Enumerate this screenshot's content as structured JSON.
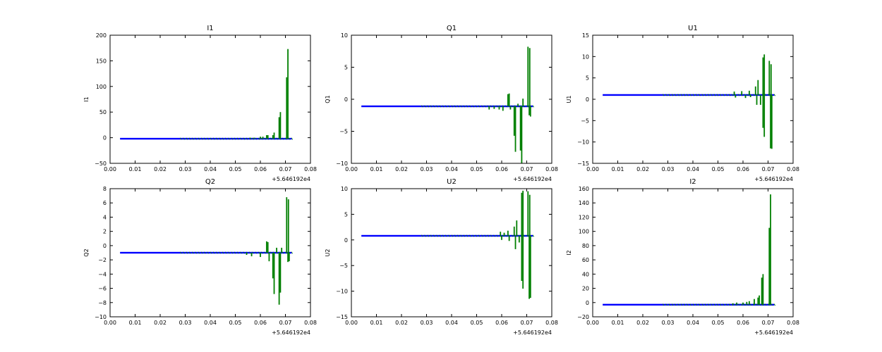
{
  "chart_data": [
    {
      "type": "line",
      "title": "I1",
      "ylabel": "I1",
      "xlim": [
        0.0,
        0.08
      ],
      "ylim": [
        -50,
        200
      ],
      "x_ticks": [
        "0.00",
        "0.01",
        "0.02",
        "0.03",
        "0.04",
        "0.05",
        "0.06",
        "0.07",
        "0.08"
      ],
      "y_ticks": [
        "200",
        "150",
        "100",
        "50",
        "0",
        "−50"
      ],
      "y_tick_values": [
        200,
        150,
        100,
        50,
        0,
        -50
      ],
      "x_offset_label": "+5.646192e4",
      "baseline": -2,
      "x_start": 0.004,
      "x_end": 0.0725,
      "series": [
        {
          "color": "#0000ff",
          "type": "line",
          "values": [
            [
              0.004,
              -2
            ],
            [
              0.0725,
              -2
            ]
          ]
        },
        {
          "color": "#007f00",
          "type": "spikes",
          "values": [
            [
              0.0535,
              -1
            ],
            [
              0.056,
              0
            ],
            [
              0.0575,
              0
            ],
            [
              0.06,
              2
            ],
            [
              0.061,
              2
            ],
            [
              0.0625,
              5
            ],
            [
              0.063,
              5
            ],
            [
              0.065,
              5
            ],
            [
              0.0655,
              10
            ],
            [
              0.0675,
              40
            ],
            [
              0.068,
              50
            ],
            [
              0.0705,
              118
            ],
            [
              0.071,
              173
            ]
          ]
        }
      ]
    },
    {
      "type": "line",
      "title": "Q1",
      "ylabel": "Q1",
      "xlim": [
        0.0,
        0.08
      ],
      "ylim": [
        -10,
        10
      ],
      "x_ticks": [
        "0.00",
        "0.01",
        "0.02",
        "0.03",
        "0.04",
        "0.05",
        "0.06",
        "0.07",
        "0.08"
      ],
      "y_ticks": [
        "10",
        "5",
        "0",
        "−5",
        "−10"
      ],
      "y_tick_values": [
        10,
        5,
        0,
        -5,
        -10
      ],
      "x_offset_label": "+5.646192e4",
      "baseline": -1.1,
      "x_start": 0.004,
      "x_end": 0.0725,
      "series": [
        {
          "color": "#0000ff",
          "type": "line",
          "values": [
            [
              0.004,
              -1.1
            ],
            [
              0.0725,
              -1.1
            ]
          ]
        },
        {
          "color": "#007f00",
          "type": "spikes",
          "values": [
            [
              0.055,
              -1.6
            ],
            [
              0.057,
              -1.5
            ],
            [
              0.059,
              -1.6
            ],
            [
              0.0605,
              -1.8
            ],
            [
              0.0625,
              0.8
            ],
            [
              0.063,
              0.9
            ],
            [
              0.0635,
              -1.6
            ],
            [
              0.065,
              -5.7
            ],
            [
              0.0655,
              -8.2
            ],
            [
              0.0665,
              -0.7
            ],
            [
              0.0675,
              -8.0
            ],
            [
              0.068,
              -10
            ],
            [
              0.0685,
              0.1
            ],
            [
              0.0705,
              8.2
            ],
            [
              0.0712,
              8.0
            ],
            [
              0.071,
              -2.5
            ],
            [
              0.0715,
              -2.7
            ]
          ]
        }
      ]
    },
    {
      "type": "line",
      "title": "U1",
      "ylabel": "U1",
      "xlim": [
        0.0,
        0.08
      ],
      "ylim": [
        -15,
        15
      ],
      "x_ticks": [
        "0.00",
        "0.01",
        "0.02",
        "0.03",
        "0.04",
        "0.05",
        "0.06",
        "0.07",
        "0.08"
      ],
      "y_ticks": [
        "15",
        "10",
        "5",
        "0",
        "−5",
        "−10",
        "−15"
      ],
      "y_tick_values": [
        15,
        10,
        5,
        0,
        -5,
        -10,
        -15
      ],
      "x_offset_label": "+5.646192e4",
      "baseline": 1,
      "x_start": 0.004,
      "x_end": 0.0725,
      "series": [
        {
          "color": "#0000ff",
          "type": "line",
          "values": [
            [
              0.004,
              1
            ],
            [
              0.0725,
              1
            ]
          ]
        },
        {
          "color": "#007f00",
          "type": "spikes",
          "values": [
            [
              0.0565,
              1.8
            ],
            [
              0.057,
              0.4
            ],
            [
              0.0595,
              1.9
            ],
            [
              0.061,
              0.3
            ],
            [
              0.0625,
              2.0
            ],
            [
              0.063,
              0.5
            ],
            [
              0.065,
              3.0
            ],
            [
              0.0655,
              -1.3
            ],
            [
              0.066,
              4.5
            ],
            [
              0.067,
              -1.3
            ],
            [
              0.068,
              9.8
            ],
            [
              0.0685,
              10.5
            ],
            [
              0.068,
              -6.7
            ],
            [
              0.0685,
              -8.8
            ],
            [
              0.0705,
              9.0
            ],
            [
              0.0712,
              8.2
            ],
            [
              0.071,
              -11.5
            ],
            [
              0.0715,
              -11.6
            ]
          ]
        }
      ]
    },
    {
      "type": "line",
      "title": "Q2",
      "ylabel": "Q2",
      "xlim": [
        0.0,
        0.08
      ],
      "ylim": [
        -10,
        8
      ],
      "x_ticks": [
        "0.00",
        "0.01",
        "0.02",
        "0.03",
        "0.04",
        "0.05",
        "0.06",
        "0.07",
        "0.08"
      ],
      "y_ticks": [
        "8",
        "6",
        "4",
        "2",
        "0",
        "−2",
        "−4",
        "−6",
        "−8",
        "−10"
      ],
      "y_tick_values": [
        8,
        6,
        4,
        2,
        0,
        -2,
        -4,
        -6,
        -8,
        -10
      ],
      "x_offset_label": "+5.646192e4",
      "baseline": -1,
      "x_start": 0.004,
      "x_end": 0.0725,
      "series": [
        {
          "color": "#0000ff",
          "type": "line",
          "values": [
            [
              0.004,
              -1
            ],
            [
              0.0725,
              -1
            ]
          ]
        },
        {
          "color": "#007f00",
          "type": "spikes",
          "values": [
            [
              0.0545,
              -1.3
            ],
            [
              0.0565,
              -1.5
            ],
            [
              0.06,
              -1.6
            ],
            [
              0.0625,
              0.6
            ],
            [
              0.063,
              0.5
            ],
            [
              0.0635,
              -2.2
            ],
            [
              0.065,
              -4.6
            ],
            [
              0.0655,
              -6.8
            ],
            [
              0.0665,
              -0.3
            ],
            [
              0.0675,
              -8.3
            ],
            [
              0.068,
              -6.6
            ],
            [
              0.0685,
              -0.3
            ],
            [
              0.0705,
              6.8
            ],
            [
              0.0712,
              6.5
            ],
            [
              0.071,
              -2.3
            ],
            [
              0.0715,
              -2.2
            ]
          ]
        }
      ]
    },
    {
      "type": "line",
      "title": "U2",
      "ylabel": "U2",
      "xlim": [
        0.0,
        0.08
      ],
      "ylim": [
        -15,
        10
      ],
      "x_ticks": [
        "0.00",
        "0.01",
        "0.02",
        "0.03",
        "0.04",
        "0.05",
        "0.06",
        "0.07",
        "0.08"
      ],
      "y_ticks": [
        "10",
        "5",
        "0",
        "−5",
        "−10",
        "−15"
      ],
      "y_tick_values": [
        10,
        5,
        0,
        -5,
        -10,
        -15
      ],
      "x_offset_label": "+5.646192e4",
      "baseline": 0.8,
      "x_start": 0.004,
      "x_end": 0.0725,
      "series": [
        {
          "color": "#0000ff",
          "type": "line",
          "values": [
            [
              0.004,
              0.8
            ],
            [
              0.0725,
              0.8
            ]
          ]
        },
        {
          "color": "#007f00",
          "type": "spikes",
          "values": [
            [
              0.0595,
              1.6
            ],
            [
              0.06,
              0.0
            ],
            [
              0.061,
              1.4
            ],
            [
              0.0625,
              1.8
            ],
            [
              0.063,
              -0.2
            ],
            [
              0.065,
              2.6
            ],
            [
              0.0655,
              -1.8
            ],
            [
              0.066,
              3.8
            ],
            [
              0.067,
              -0.5
            ],
            [
              0.068,
              9.2
            ],
            [
              0.0685,
              9.6
            ],
            [
              0.068,
              -8.0
            ],
            [
              0.0685,
              -9.5
            ],
            [
              0.0705,
              9.5
            ],
            [
              0.0712,
              8.8
            ],
            [
              0.071,
              -11.5
            ],
            [
              0.0715,
              -11.3
            ]
          ]
        }
      ]
    },
    {
      "type": "line",
      "title": "I2",
      "ylabel": "I2",
      "xlim": [
        0.0,
        0.08
      ],
      "ylim": [
        -20,
        160
      ],
      "x_ticks": [
        "0.00",
        "0.01",
        "0.02",
        "0.03",
        "0.04",
        "0.05",
        "0.06",
        "0.07",
        "0.08"
      ],
      "y_ticks": [
        "160",
        "140",
        "120",
        "100",
        "80",
        "60",
        "40",
        "20",
        "0",
        "−20"
      ],
      "y_tick_values": [
        160,
        140,
        120,
        100,
        80,
        60,
        40,
        20,
        0,
        -20
      ],
      "x_offset_label": "+5.646192e4",
      "baseline": -3,
      "x_start": 0.004,
      "x_end": 0.0725,
      "series": [
        {
          "color": "#0000ff",
          "type": "line",
          "values": [
            [
              0.004,
              -3
            ],
            [
              0.0725,
              -3
            ]
          ]
        },
        {
          "color": "#007f00",
          "type": "spikes",
          "values": [
            [
              0.056,
              -1
            ],
            [
              0.0575,
              0
            ],
            [
              0.06,
              0
            ],
            [
              0.0615,
              1
            ],
            [
              0.0625,
              2
            ],
            [
              0.0645,
              5
            ],
            [
              0.066,
              7
            ],
            [
              0.0665,
              10
            ],
            [
              0.0675,
              35
            ],
            [
              0.068,
              40
            ],
            [
              0.0705,
              105
            ],
            [
              0.071,
              152
            ]
          ]
        }
      ]
    }
  ]
}
